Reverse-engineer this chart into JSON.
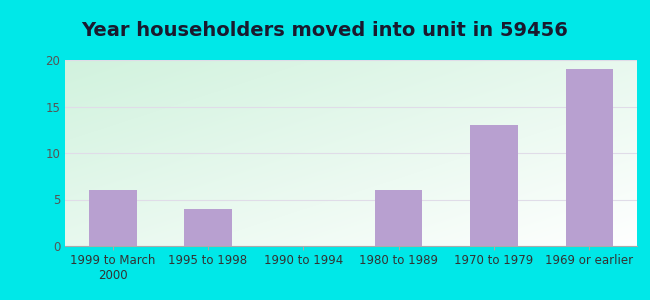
{
  "title": "Year householders moved into unit in 59456",
  "categories": [
    "1999 to March\n2000",
    "1995 to 1998",
    "1990 to 1994",
    "1980 to 1989",
    "1970 to 1979",
    "1969 or earlier"
  ],
  "values": [
    6,
    4,
    0,
    6,
    13,
    19
  ],
  "bar_color": "#b8a0d0",
  "ylim": [
    0,
    20
  ],
  "yticks": [
    0,
    5,
    10,
    15,
    20
  ],
  "outer_bg": "#00e8e8",
  "grid_color": "#e0dce8",
  "title_fontsize": 14,
  "tick_fontsize": 8.5,
  "title_color": "#1a1a2e"
}
